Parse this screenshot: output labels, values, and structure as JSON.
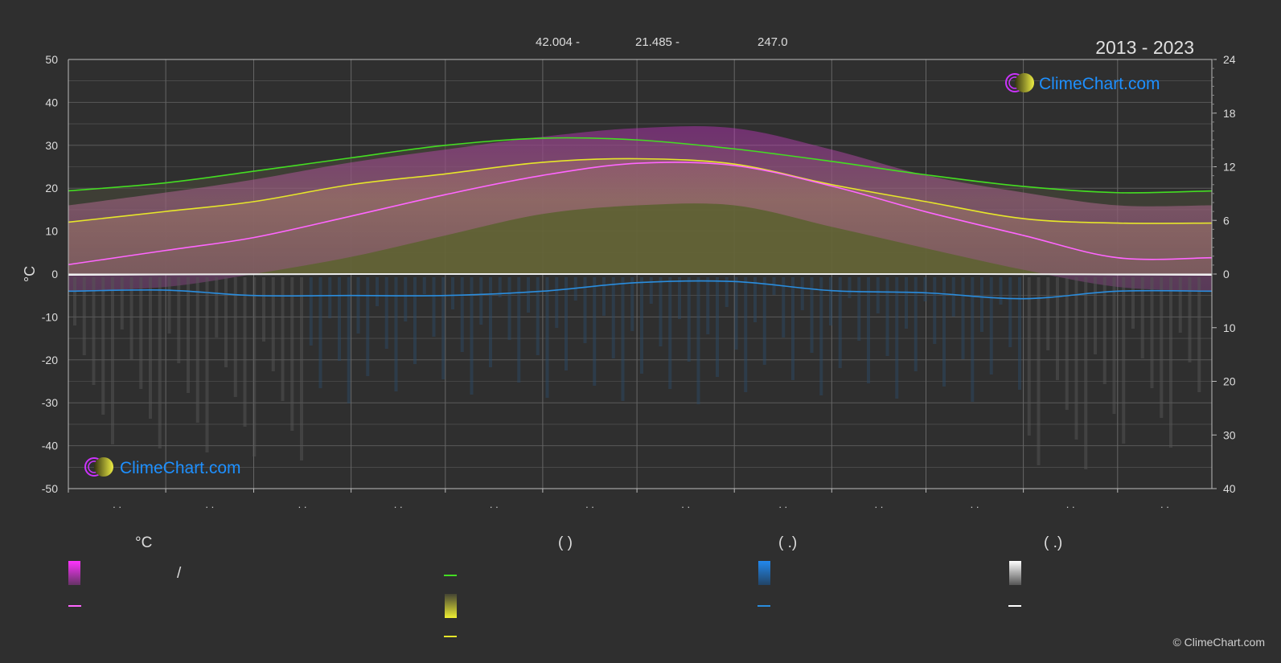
{
  "header": {
    "period": "2013 - 2023",
    "coords": [
      "42.004 -",
      "21.485 -",
      "247.0"
    ]
  },
  "chart_data": {
    "type": "area",
    "title": "",
    "left_axis": {
      "label": "°C",
      "min": -50,
      "max": 50,
      "ticks": [
        50,
        40,
        30,
        20,
        10,
        0,
        -10,
        -20,
        -30,
        -40,
        -50
      ]
    },
    "right_axis_top": {
      "min": 0,
      "max": 24,
      "ticks": [
        24,
        18,
        12,
        6,
        0
      ]
    },
    "right_axis_bottom": {
      "min": 0,
      "max": 40,
      "ticks": [
        10,
        20,
        30,
        40
      ]
    },
    "month_labels": [
      ". .",
      ". .",
      ". .",
      ". .",
      ". .",
      ". .",
      ". .",
      ". .",
      ". .",
      ". .",
      ". .",
      ". ."
    ],
    "x_days": [
      1,
      32,
      60,
      91,
      121,
      152,
      182,
      213,
      244,
      274,
      305,
      335,
      365
    ],
    "series": [
      {
        "key": "daylight_hours",
        "color": "#44dd22",
        "values": [
          9.3,
          10.2,
          11.5,
          13.0,
          14.4,
          15.2,
          15.0,
          14.0,
          12.6,
          11.1,
          9.8,
          9.1,
          9.3
        ]
      },
      {
        "key": "sunshine_hours",
        "color": "#e6e62a",
        "values": [
          5.8,
          7.0,
          8.1,
          10.0,
          11.2,
          12.5,
          12.9,
          12.3,
          10.0,
          8.1,
          6.2,
          5.7,
          5.7
        ]
      },
      {
        "key": "avg_temp",
        "color": "#ff66ff",
        "values": [
          2.2,
          5.5,
          8.5,
          13.5,
          18.5,
          23.0,
          25.8,
          25.3,
          20.5,
          14.5,
          9.0,
          3.8,
          3.8
        ]
      },
      {
        "key": "rain_line",
        "color": "#2a8dde",
        "values": [
          3.2,
          3.0,
          4.0,
          4.0,
          4.0,
          3.2,
          1.6,
          1.4,
          3.1,
          3.5,
          4.6,
          3.2,
          3.2
        ]
      },
      {
        "key": "snow_line",
        "color": "#ffffff",
        "values": [
          1.0,
          0.5,
          0.2,
          0,
          0,
          0,
          0,
          0,
          0,
          0,
          0.1,
          0.6,
          1.0
        ]
      }
    ],
    "temp_band": {
      "max": [
        16,
        19,
        22,
        26,
        29,
        32,
        34,
        34,
        29,
        23,
        19,
        16,
        16
      ],
      "min": [
        -4,
        -3,
        0,
        4,
        9,
        14,
        16,
        16,
        11,
        6,
        1,
        -3,
        -4
      ]
    },
    "grid": true
  },
  "legend": {
    "col1": {
      "header": "°C",
      "row1_sep": "/"
    },
    "col2": {
      "header": "(          )"
    },
    "col3": {
      "header": "(    .)"
    },
    "col4": {
      "header": "(    .)"
    }
  },
  "brand": {
    "name": "ClimeChart.com"
  },
  "footer": {
    "copyright": "© ClimeChart.com"
  },
  "colors": {
    "background": "#2f2f2f",
    "grid": "#666666",
    "brand": "#1e90ff"
  }
}
